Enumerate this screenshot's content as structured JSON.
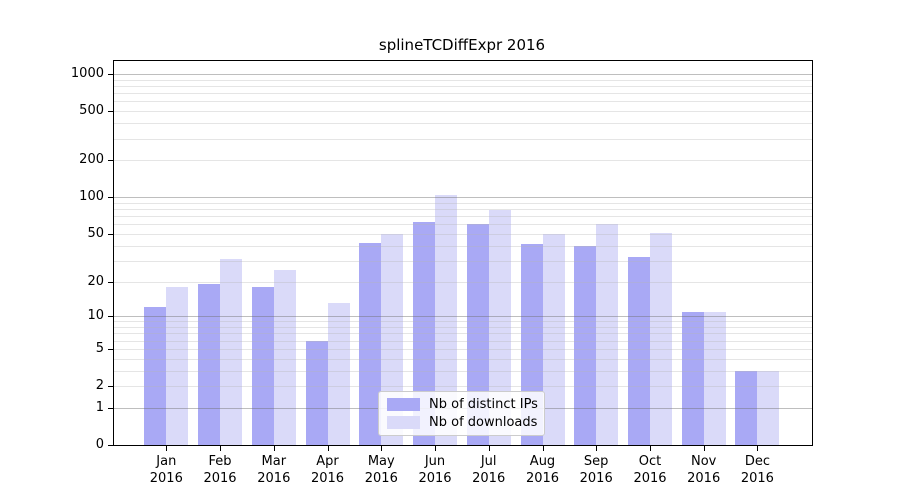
{
  "title": "splineTCDiffExpr 2016",
  "chart_data": {
    "type": "bar",
    "title": "splineTCDiffExpr 2016",
    "categories": [
      "Jan 2016",
      "Feb 2016",
      "Mar 2016",
      "Apr 2016",
      "May 2016",
      "Jun 2016",
      "Jul 2016",
      "Aug 2016",
      "Sep 2016",
      "Oct 2016",
      "Nov 2016",
      "Dec 2016"
    ],
    "series": [
      {
        "name": "Nb of distinct IPs",
        "color": "#a9a9f5",
        "values": [
          12,
          19,
          18,
          6,
          42,
          63,
          60,
          41,
          40,
          32,
          11,
          3
        ]
      },
      {
        "name": "Nb of downloads",
        "color": "#dadaf9",
        "values": [
          18,
          31,
          25,
          13,
          50,
          104,
          78,
          50,
          60,
          51,
          11,
          3
        ]
      }
    ],
    "xlabel": "",
    "ylabel": "",
    "yscale": "log1p",
    "ylim": [
      0,
      1275
    ],
    "yticks": [
      0,
      1,
      2,
      5,
      10,
      20,
      50,
      100,
      200,
      500,
      1000
    ],
    "grid": true,
    "legend_position": "lower center"
  }
}
